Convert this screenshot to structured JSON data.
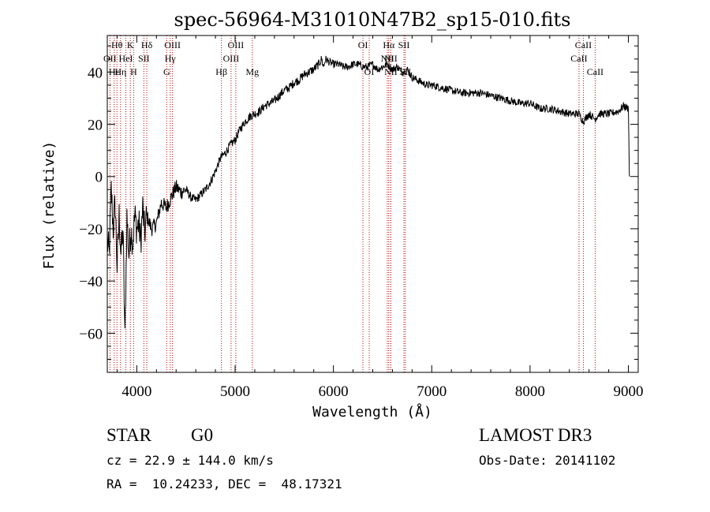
{
  "chart_data": {
    "type": "line",
    "title": "spec-56964-M31010N47B2_sp15-010.fits",
    "xlabel": "Wavelength (Å)",
    "ylabel": "Flux (relative)",
    "xlim": [
      3700,
      9100
    ],
    "ylim": [
      -75,
      54
    ],
    "xticks": [
      4000,
      5000,
      6000,
      7000,
      8000,
      9000
    ],
    "yticks": [
      -60,
      -40,
      -20,
      0,
      20,
      40
    ],
    "ytick_labels": [
      "−60",
      "−40",
      "−20",
      "0",
      "20",
      "40"
    ],
    "grid": false,
    "series": [
      {
        "name": "flux",
        "x": [
          3700,
          3720,
          3740,
          3760,
          3780,
          3800,
          3820,
          3840,
          3860,
          3880,
          3900,
          3920,
          3940,
          3960,
          3980,
          4000,
          4020,
          4040,
          4060,
          4080,
          4100,
          4150,
          4200,
          4250,
          4300,
          4350,
          4400,
          4450,
          4500,
          4550,
          4600,
          4650,
          4700,
          4750,
          4800,
          4850,
          4900,
          4950,
          5000,
          5050,
          5100,
          5150,
          5200,
          5250,
          5300,
          5350,
          5400,
          5450,
          5500,
          5550,
          5600,
          5650,
          5700,
          5750,
          5800,
          5850,
          5880,
          5900,
          5920,
          5950,
          6000,
          6050,
          6100,
          6150,
          6200,
          6250,
          6300,
          6350,
          6400,
          6450,
          6500,
          6550,
          6600,
          6650,
          6700,
          6750,
          6800,
          6850,
          6900,
          6950,
          7000,
          7100,
          7200,
          7300,
          7400,
          7500,
          7600,
          7700,
          7800,
          7900,
          8000,
          8100,
          8200,
          8300,
          8400,
          8500,
          8540,
          8600,
          8660,
          8700,
          8800,
          8900,
          8950,
          9000,
          9010
        ],
        "y": [
          -25,
          -30,
          -5,
          -20,
          -10,
          -35,
          -15,
          -30,
          -20,
          -63,
          -15,
          -30,
          -20,
          -25,
          -15,
          -20,
          -18,
          -25,
          -12,
          -22,
          -15,
          -20,
          -18,
          -10,
          -12,
          -8,
          -4,
          -6,
          -5,
          -8,
          -9,
          -7,
          -5,
          -2,
          2,
          7,
          9,
          12,
          14,
          18,
          21,
          23,
          24,
          25,
          27,
          28,
          29,
          31,
          33,
          34,
          36,
          37,
          39,
          40,
          41,
          43,
          45,
          42,
          45,
          44,
          43,
          43,
          42,
          42,
          43,
          43,
          42,
          42,
          43,
          41,
          42,
          43,
          41,
          42,
          40,
          41,
          38,
          37,
          36,
          35,
          35,
          34,
          33,
          32,
          32,
          32,
          31,
          30,
          29,
          28,
          28,
          26,
          26,
          25,
          24,
          24,
          21,
          24,
          22,
          24,
          24,
          25,
          27,
          26,
          0
        ]
      }
    ],
    "emission_lines": [
      {
        "label": "Hθ",
        "x": 3798,
        "row": 1
      },
      {
        "label": "K",
        "x": 3934,
        "row": 1
      },
      {
        "label": "Hδ",
        "x": 4102,
        "row": 1
      },
      {
        "label": "OIII",
        "x": 4363,
        "row": 1
      },
      {
        "label": "OIII",
        "x": 5007,
        "row": 1
      },
      {
        "label": "OI",
        "x": 6300,
        "row": 1
      },
      {
        "label": "Hα",
        "x": 6563,
        "row": 1
      },
      {
        "label": "SII",
        "x": 6717,
        "row": 1
      },
      {
        "label": "CaII",
        "x": 8542,
        "row": 1
      },
      {
        "label": "OII",
        "x": 3727,
        "row": 2
      },
      {
        "label": "HeI",
        "x": 3889,
        "row": 2
      },
      {
        "label": "SII",
        "x": 4072,
        "row": 2
      },
      {
        "label": "Hγ",
        "x": 4340,
        "row": 2
      },
      {
        "label": "OIII",
        "x": 4959,
        "row": 2
      },
      {
        "label": "NII",
        "x": 6548,
        "row": 2
      },
      {
        "label": "NII",
        "x": 6584,
        "row": 2
      },
      {
        "label": "CaII",
        "x": 8498,
        "row": 2
      },
      {
        "label": "Hη",
        "x": 3835,
        "row": 3
      },
      {
        "label": "Hε",
        "x": 3770,
        "row": 3
      },
      {
        "label": "H",
        "x": 3968,
        "row": 3
      },
      {
        "label": "G",
        "x": 4304,
        "row": 3
      },
      {
        "label": "Hβ",
        "x": 4861,
        "row": 3
      },
      {
        "label": "Mg",
        "x": 5175,
        "row": 3
      },
      {
        "label": "OI",
        "x": 6364,
        "row": 3
      },
      {
        "label": "NII",
        "x": 6584,
        "row": 3
      },
      {
        "label": "SII",
        "x": 6731,
        "row": 3
      },
      {
        "label": "CaII",
        "x": 8662,
        "row": 3
      }
    ],
    "line_color": "#000000",
    "marker_color": "#c00000"
  },
  "info": {
    "object_class": "STAR",
    "subclass": "G0",
    "survey": "LAMOST DR3",
    "cz": "cz = 22.9 ± 144.0 km/s",
    "obs_date": "Obs-Date: 20141102",
    "coords": "RA =  10.24233, DEC =  48.17321"
  }
}
